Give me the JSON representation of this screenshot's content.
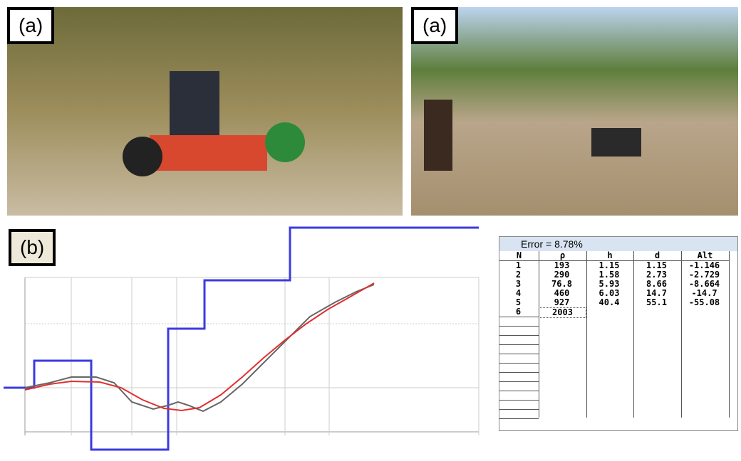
{
  "panels": {
    "photo_left_label": "(a)",
    "photo_right_label": "(a)",
    "chart_label": "(b)"
  },
  "table": {
    "title": "Error = 8.78%",
    "header": [
      "N",
      "ρ",
      "h",
      "d",
      "Alt"
    ],
    "rows": [
      [
        "1",
        "193",
        "1.15",
        "1.15",
        "-1.146"
      ],
      [
        "2",
        "290",
        "1.58",
        "2.73",
        "-2.729"
      ],
      [
        "3",
        "76.8",
        "5.93",
        "8.66",
        "-8.664"
      ],
      [
        "4",
        "460",
        "6.03",
        "14.7",
        "-14.7"
      ],
      [
        "5",
        "927",
        "40.4",
        "55.1",
        "-55.08"
      ],
      [
        "6",
        "2003"
      ]
    ]
  }
}
